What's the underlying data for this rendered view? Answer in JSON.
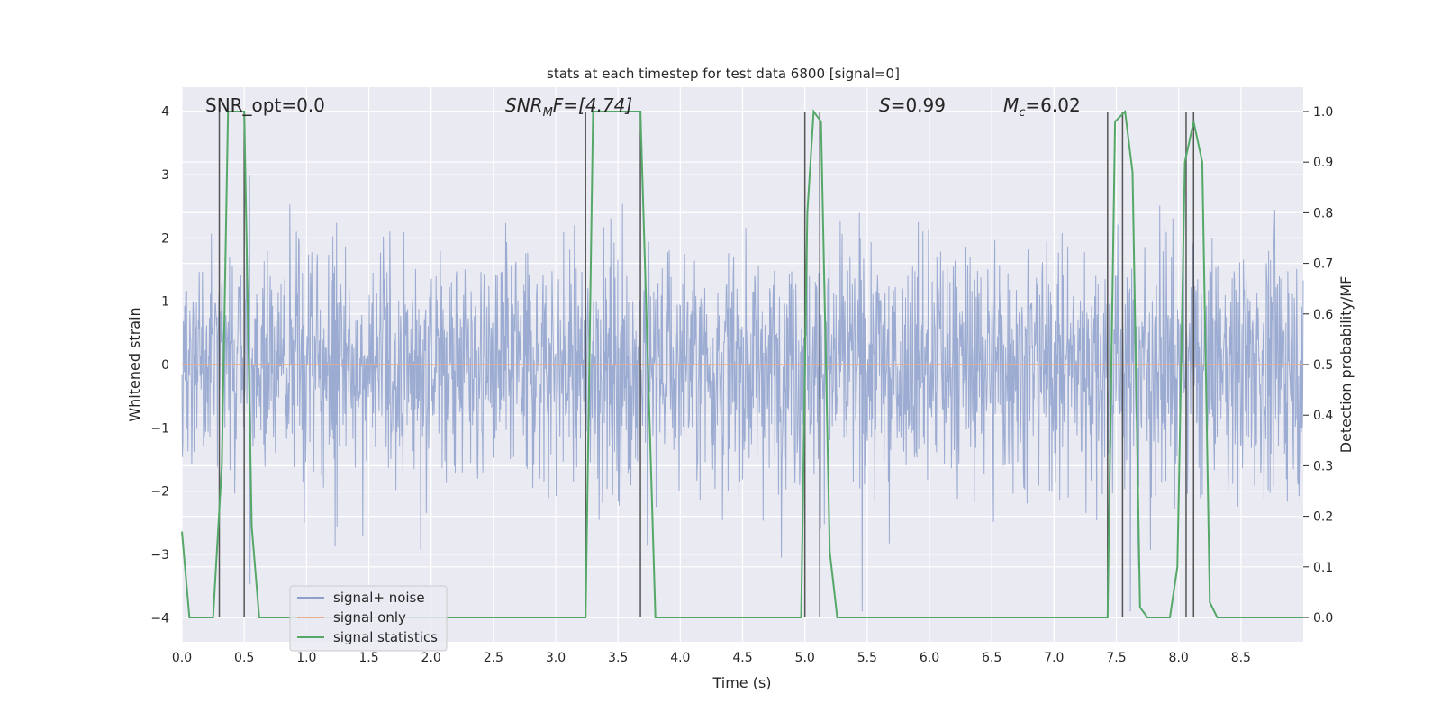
{
  "chart_data": {
    "type": "line",
    "title": "stats at each timestep for test data 6800 [signal=0]",
    "xlabel": "Time (s)",
    "ylabel": "Whitened strain",
    "y2label": "Detection probability/MF",
    "xlim": [
      0.0,
      9.0
    ],
    "ylim": [
      -4.38,
      4.38
    ],
    "y2lim": [
      -0.048,
      1.048
    ],
    "x_ticks": [
      "0.0",
      "0.5",
      "1.0",
      "1.5",
      "2.0",
      "2.5",
      "3.0",
      "3.5",
      "4.0",
      "4.5",
      "5.0",
      "5.5",
      "6.0",
      "6.5",
      "7.0",
      "7.5",
      "8.0",
      "8.5"
    ],
    "y_ticks": [
      "4",
      "3",
      "2",
      "1",
      "0",
      "−1",
      "−2",
      "−3",
      "−4"
    ],
    "y2_ticks": [
      "0.0",
      "0.1",
      "0.2",
      "0.3",
      "0.4",
      "0.5",
      "0.6",
      "0.7",
      "0.8",
      "0.9",
      "1.0"
    ],
    "grid": true,
    "annotations": {
      "snr_opt": "SNR_opt=0.0",
      "snr_mf_sym": "SNR",
      "snr_mf_sub": "M",
      "snr_mf_rest": "F=[4.74]",
      "s_sym": "S",
      "s_rest": "=0.99",
      "mc_sym": "M",
      "mc_sub": "c",
      "mc_rest": "=6.02"
    },
    "legend": {
      "placement": "lower-left",
      "entries": [
        {
          "label": "signal+ noise",
          "color": "#8da0cb"
        },
        {
          "label": "signal only",
          "color": "#e5ae8c"
        },
        {
          "label": "signal statistics",
          "color": "#55a868"
        }
      ]
    },
    "series": [
      {
        "name": "signal+ noise",
        "color": "#8da0cb",
        "description_of_values": "whitened strain noise samples, amplitude range approx -3.9 to 3.9, dense random noise across 0-9 s",
        "peak_max": 3.9,
        "peak_min": -3.9
      },
      {
        "name": "signal only",
        "color": "#e5ae8c",
        "x": [
          0.0,
          9.0
        ],
        "y": [
          0.0,
          0.0
        ]
      },
      {
        "name": "signal statistics",
        "color": "#55a868",
        "axis": "right",
        "x": [
          0.0,
          0.06,
          0.1,
          0.25,
          0.32,
          0.37,
          0.5,
          0.56,
          0.62,
          3.24,
          3.3,
          3.36,
          3.68,
          3.74,
          3.8,
          4.97,
          5.02,
          5.07,
          5.13,
          5.2,
          5.26,
          7.43,
          7.49,
          7.57,
          7.63,
          7.69,
          7.75,
          7.85,
          7.93,
          7.99,
          8.05,
          8.12,
          8.19,
          8.25,
          8.31,
          8.4,
          8.6,
          9.0
        ],
        "y": [
          0.17,
          0.0,
          0.0,
          0.0,
          0.3,
          1.0,
          1.0,
          0.18,
          0.0,
          0.0,
          1.0,
          1.0,
          1.0,
          0.5,
          0.0,
          0.0,
          0.8,
          1.0,
          0.98,
          0.13,
          0.0,
          0.0,
          0.98,
          1.0,
          0.88,
          0.02,
          0.0,
          0.0,
          0.0,
          0.1,
          0.9,
          0.98,
          0.9,
          0.03,
          0.0,
          0.0,
          0.0,
          0.0
        ]
      }
    ],
    "markers": {
      "color": "#555555",
      "x": [
        0.3,
        0.5,
        3.24,
        3.68,
        5.0,
        5.12,
        7.43,
        7.55,
        8.06,
        8.12
      ]
    }
  }
}
